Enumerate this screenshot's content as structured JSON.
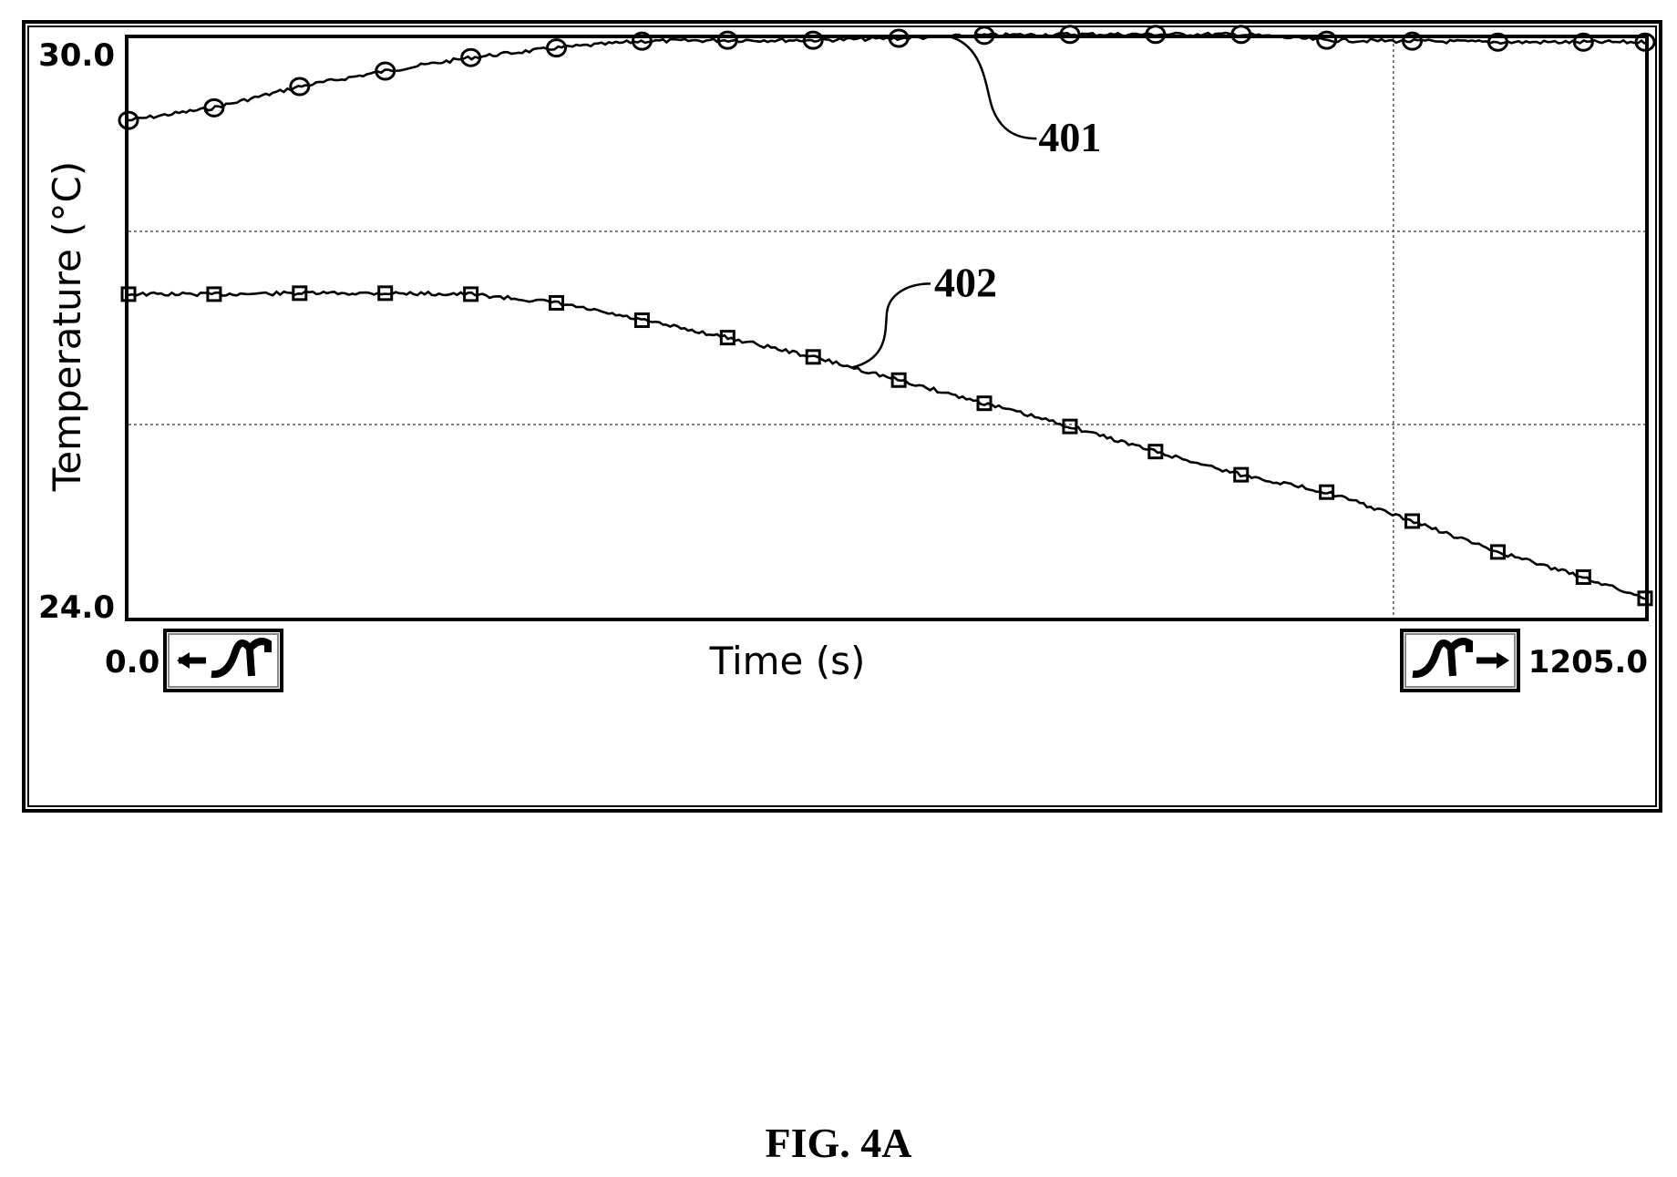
{
  "figure_caption": "FIG. 4A",
  "chart_data": {
    "type": "line",
    "xlabel": "Time (s)",
    "ylabel": "Temperature (°C)",
    "x_min_label": "0.0",
    "x_max_label": "1205.0",
    "y_max_label": "30.0",
    "y_min_label": "24.0",
    "xlim": [
      0,
      1205
    ],
    "ylim": [
      24.0,
      30.0
    ],
    "grid": true,
    "grid_x": [
      1005
    ],
    "grid_y": [
      28.0,
      26.0
    ],
    "legend": "none",
    "nav_buttons": [
      {
        "name": "scroll-left-button",
        "icon": "scroll-left-icon"
      },
      {
        "name": "scroll-right-button",
        "icon": "scroll-right-icon"
      }
    ],
    "series": [
      {
        "ref": "401",
        "marker": "circle",
        "x": [
          0,
          68,
          136,
          204,
          272,
          340,
          408,
          476,
          544,
          612,
          680,
          748,
          816,
          884,
          952,
          1020,
          1088,
          1156,
          1205
        ],
        "values": [
          29.15,
          29.28,
          29.5,
          29.66,
          29.8,
          29.9,
          29.97,
          29.98,
          29.98,
          30.0,
          30.03,
          30.04,
          30.04,
          30.04,
          29.98,
          29.97,
          29.96,
          29.96,
          29.96
        ]
      },
      {
        "ref": "402",
        "marker": "square",
        "x": [
          0,
          68,
          136,
          204,
          272,
          340,
          408,
          476,
          544,
          612,
          680,
          748,
          816,
          884,
          952,
          1020,
          1088,
          1156,
          1205
        ],
        "values": [
          27.35,
          27.35,
          27.36,
          27.36,
          27.35,
          27.26,
          27.08,
          26.9,
          26.7,
          26.46,
          26.22,
          25.98,
          25.72,
          25.48,
          25.3,
          25.0,
          24.68,
          24.42,
          24.2
        ]
      }
    ],
    "annotations": [
      {
        "text": "401",
        "series_ref": "401",
        "at_x": 652
      },
      {
        "text": "402",
        "series_ref": "402",
        "at_x": 575
      }
    ]
  }
}
